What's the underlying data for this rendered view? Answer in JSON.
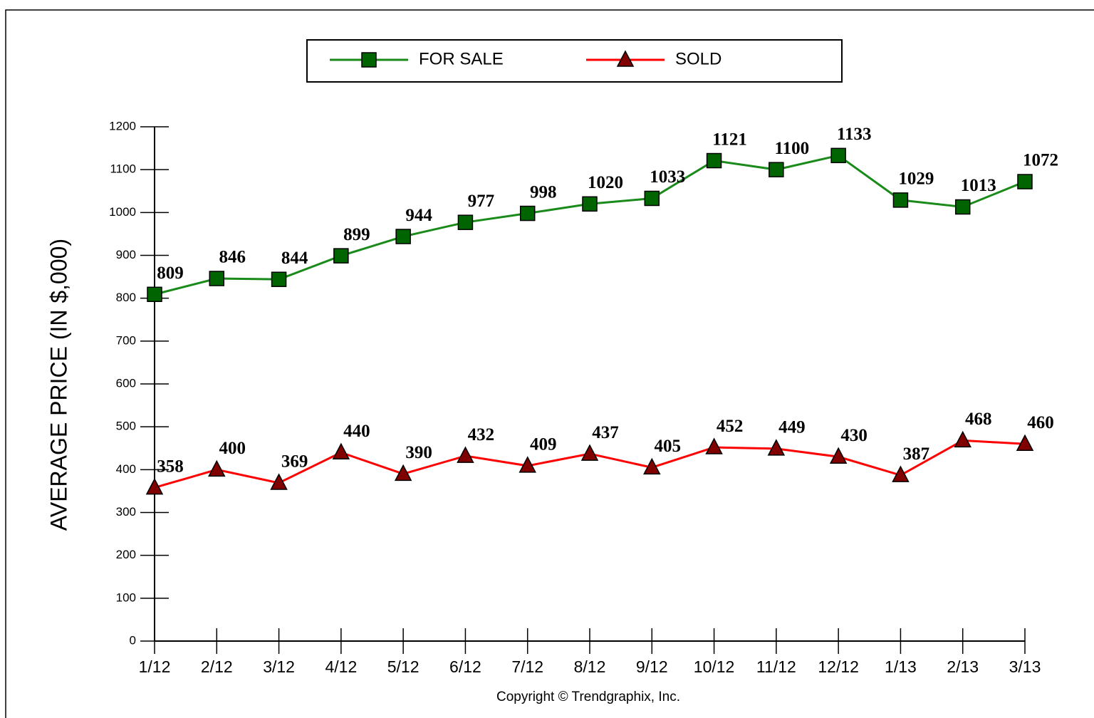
{
  "chart_data": {
    "type": "line",
    "y_label": "AVERAGE PRICE (IN $,000)",
    "footnote": "Copyright © Trendgraphix, Inc.",
    "categories": [
      "1/12",
      "2/12",
      "3/12",
      "4/12",
      "5/12",
      "6/12",
      "7/12",
      "8/12",
      "9/12",
      "10/12",
      "11/12",
      "12/12",
      "1/13",
      "2/13",
      "3/13"
    ],
    "series": [
      {
        "name": "FOR SALE",
        "color": "#1a8a1a",
        "marker_color": "#006400",
        "marker": "square",
        "values": [
          809,
          846,
          844,
          899,
          944,
          977,
          998,
          1020,
          1033,
          1121,
          1100,
          1133,
          1029,
          1013,
          1072
        ]
      },
      {
        "name": "SOLD",
        "color": "#ff0000",
        "marker_color": "#800000",
        "marker": "triangle",
        "values": [
          358,
          400,
          369,
          440,
          390,
          432,
          409,
          437,
          405,
          452,
          449,
          430,
          387,
          468,
          460
        ]
      }
    ],
    "ylim": [
      0,
      1200
    ],
    "yticks": [
      0,
      100,
      200,
      300,
      400,
      500,
      600,
      700,
      800,
      900,
      1000,
      1100,
      1200
    ],
    "legend": "top"
  }
}
